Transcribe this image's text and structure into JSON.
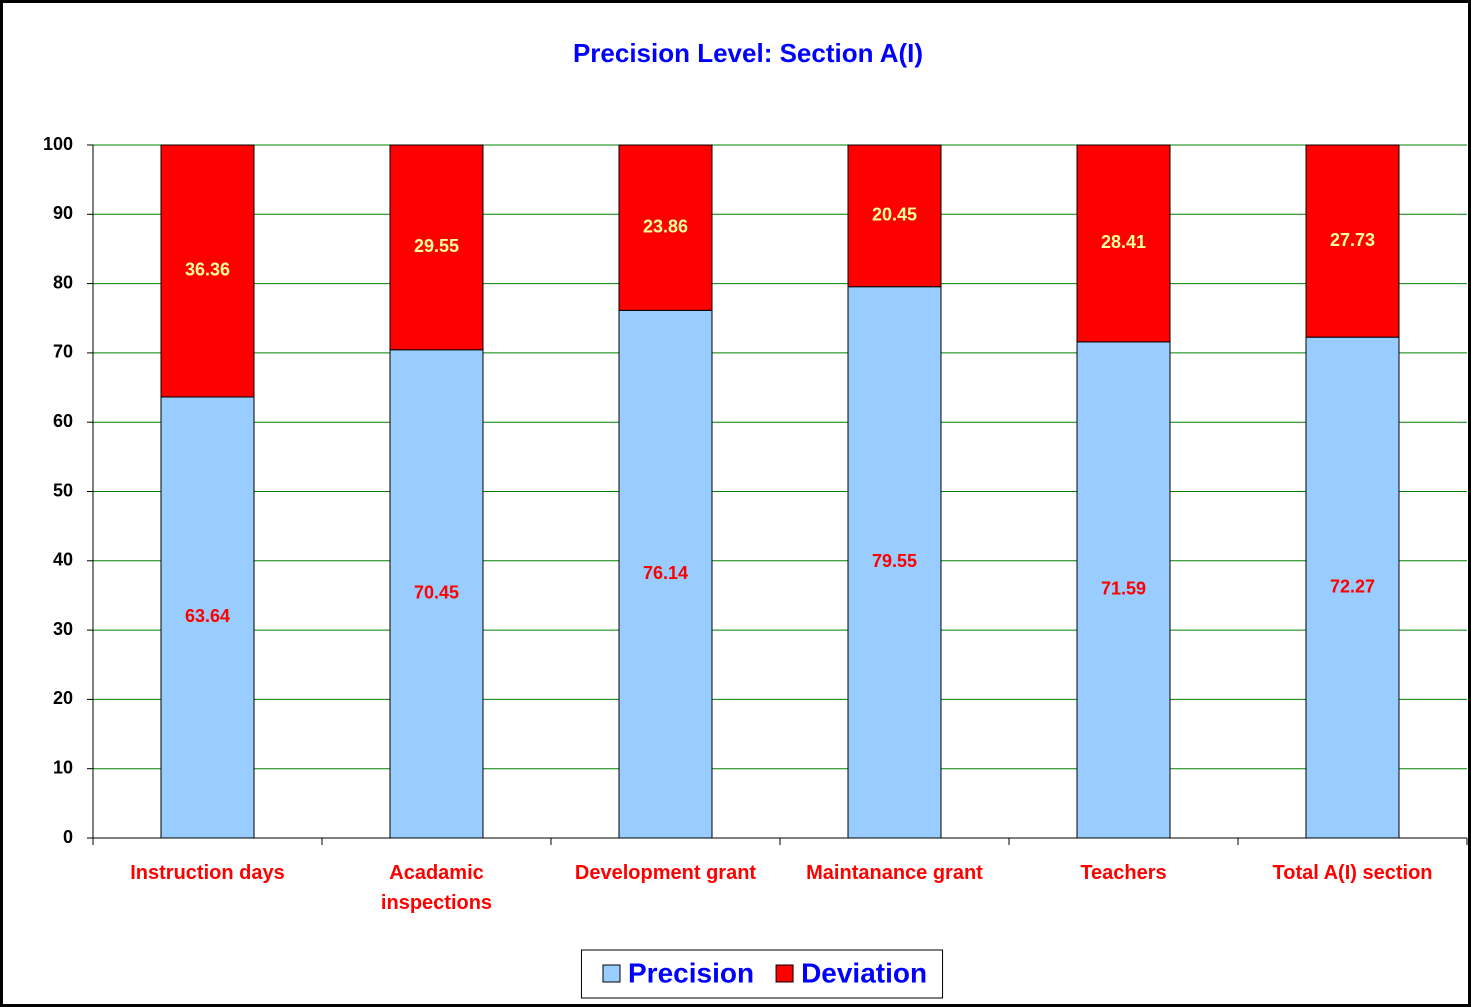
{
  "chart_data": {
    "type": "stacked_bar",
    "title": "Precision Level: Section A(I)",
    "categories": [
      "Instruction days",
      "Acadamic\ninspections",
      "Development grant",
      "Maintanance grant",
      "Teachers",
      "Total A(I) section"
    ],
    "series": [
      {
        "name": "Precision",
        "color": "#99ccff",
        "label_color": "#ff0000",
        "values": [
          63.64,
          70.45,
          76.14,
          79.55,
          71.59,
          72.27
        ]
      },
      {
        "name": "Deviation",
        "color": "#ff0000",
        "label_color": "#ffff99",
        "values": [
          36.36,
          29.55,
          23.86,
          20.45,
          28.41,
          27.73
        ]
      }
    ],
    "ylim": [
      0,
      100
    ],
    "yticks": [
      0,
      10,
      20,
      30,
      40,
      50,
      60,
      70,
      80,
      90,
      100
    ],
    "grid": true,
    "legend": "bottom"
  }
}
